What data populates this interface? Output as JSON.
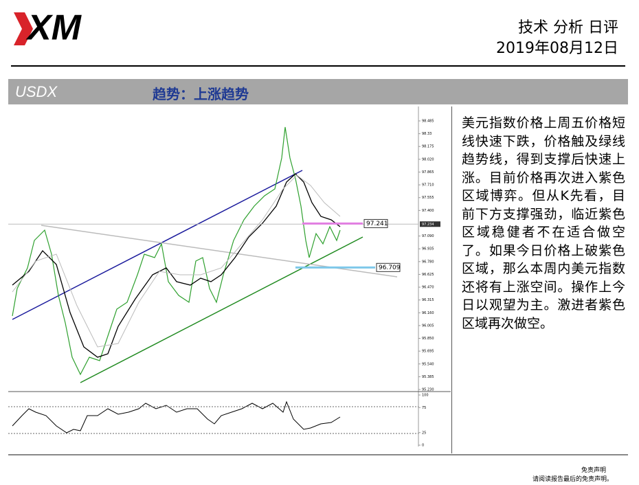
{
  "header": {
    "logo": "XM",
    "title": "技术 分析 日评",
    "date": "2019年08月12日"
  },
  "bar": {
    "symbol": "USDX",
    "trend": "趋势：上涨趋势"
  },
  "chart": {
    "ylim": [
      95.23,
      98.485
    ],
    "yticks": [
      98.485,
      98.33,
      98.175,
      {
        "value": 98.02,
        "label": "98.020"
      },
      97.865,
      {
        "value": 97.71,
        "label": "97.710"
      },
      97.555,
      {
        "value": 97.4,
        "label": "97.400"
      },
      {
        "value": 97.09,
        "label": "97.090"
      },
      96.935,
      {
        "value": 96.78,
        "label": "96.780"
      },
      96.625,
      {
        "value": 96.47,
        "label": "96.470"
      },
      96.315,
      {
        "value": 96.16,
        "label": "96.160"
      },
      96.005,
      {
        "value": 95.85,
        "label": "95.850"
      },
      95.695,
      {
        "value": 95.54,
        "label": "95.540"
      },
      95.385,
      {
        "value": 95.23,
        "label": "95.230"
      }
    ],
    "current_price": 97.234,
    "levels": [
      {
        "value": 97.241,
        "color": "#e27ee2"
      },
      {
        "value": 96.709,
        "color": "#7ec8ea"
      }
    ],
    "indicator_ylim": [
      0,
      100
    ],
    "indicator_yticks": [
      100,
      75,
      25,
      0
    ]
  },
  "commentary": "美元指数价格上周五价格短线快速下跌，价格触及绿线趋势线，得到支撑后快速上涨。目前价格再次进入紫色区域博弈。但从K先看，目前下方支撑强劲，临近紫色区域稳健者不在适合做空了。如果今日价格上破紫色区域，那么本周内美元指数还将有上涨空间。操作上今日以观望为主。激进者紫色区域再次做空。",
  "footer": {
    "title": "免责声明",
    "note": "请阅读报告最后的免责声明。"
  }
}
